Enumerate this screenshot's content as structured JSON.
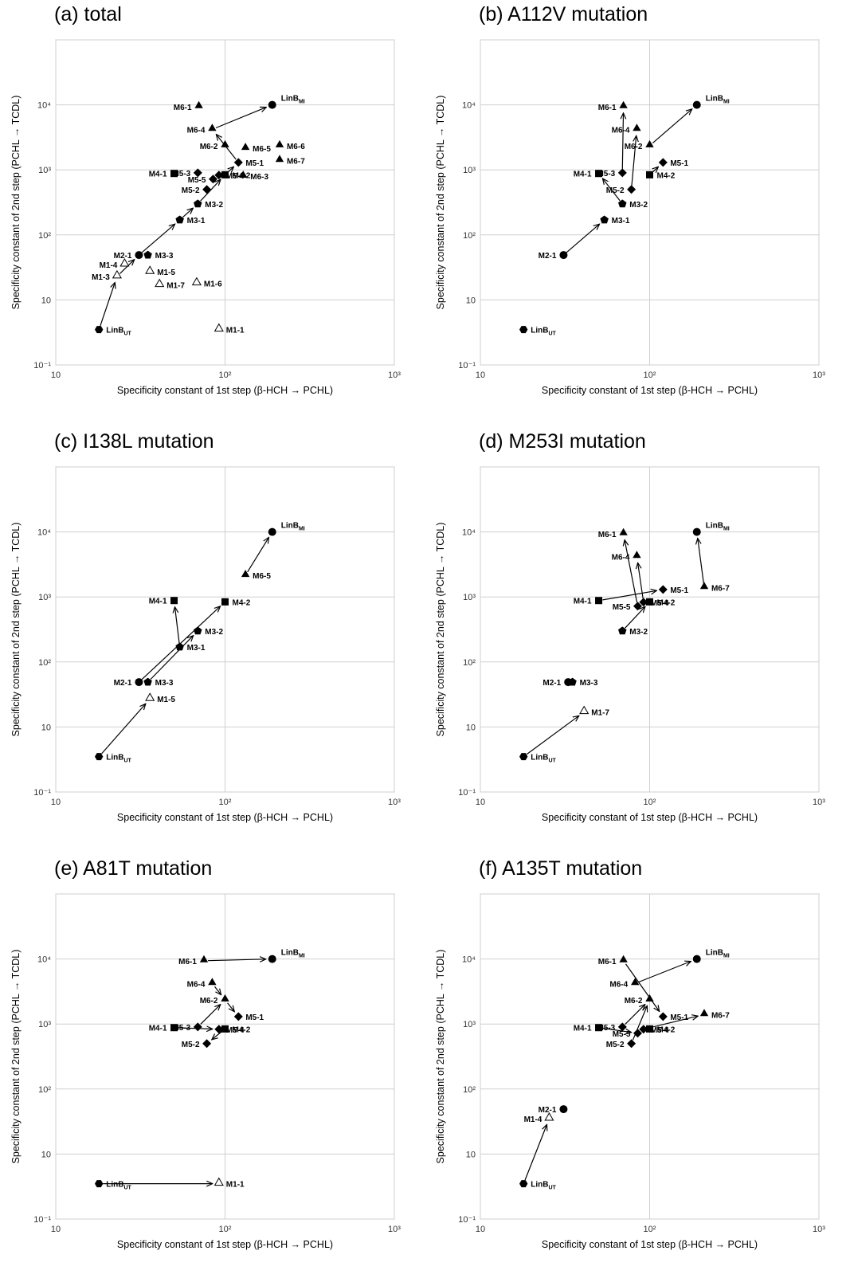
{
  "chart_data": [
    {
      "type": "scatter",
      "title": "(a) total",
      "xlabel": "Specificity constant of 1st step (β-HCH → PCHL)",
      "ylabel": "Specificity constant of 2nd step (PCHL → TCDL)",
      "x_scale": "log",
      "y_scale": "log",
      "xlim": [
        10,
        1000
      ],
      "ylim": [
        0.1,
        10000
      ],
      "x_ticks": [
        "10",
        "10²",
        "10³"
      ],
      "y_ticks": [
        "10⁻¹",
        "10",
        "10²",
        "10³",
        "10⁴"
      ],
      "grid": true,
      "points": [
        {
          "label": "LinB_UT",
          "x": 18,
          "y": 0.35,
          "marker": "hexagon"
        },
        {
          "label": "M1-3",
          "x": 23,
          "y": 2.3,
          "marker": "triangle-open"
        },
        {
          "label": "M1-4",
          "x": 25.5,
          "y": 3.5,
          "marker": "triangle-open"
        },
        {
          "label": "M2-1",
          "x": 31,
          "y": 4.9,
          "marker": "circle"
        },
        {
          "label": "M3-3",
          "x": 35,
          "y": 4.9,
          "marker": "pentagon"
        },
        {
          "label": "M1-5",
          "x": 36,
          "y": 2.7,
          "marker": "triangle-open"
        },
        {
          "label": "M1-7",
          "x": 41,
          "y": 1.7,
          "marker": "triangle-open"
        },
        {
          "label": "M1-6",
          "x": 68,
          "y": 1.8,
          "marker": "triangle-open"
        },
        {
          "label": "M1-1",
          "x": 92,
          "y": 0.35,
          "marker": "triangle-open"
        },
        {
          "label": "M3-1",
          "x": 54,
          "y": 17,
          "marker": "pentagon"
        },
        {
          "label": "M3-2",
          "x": 69,
          "y": 30,
          "marker": "pentagon"
        },
        {
          "label": "M4-1",
          "x": 50,
          "y": 88,
          "marker": "square"
        },
        {
          "label": "M4-2",
          "x": 100,
          "y": 84,
          "marker": "square"
        },
        {
          "label": "M5-3",
          "x": 69,
          "y": 90,
          "marker": "diamond"
        },
        {
          "label": "M5-2",
          "x": 78,
          "y": 50,
          "marker": "diamond"
        },
        {
          "label": "M5-5",
          "x": 85,
          "y": 72,
          "marker": "diamond"
        },
        {
          "label": "M5-4",
          "x": 92,
          "y": 83,
          "marker": "diamond"
        },
        {
          "label": "M5-1",
          "x": 120,
          "y": 130,
          "marker": "diamond"
        },
        {
          "label": "M6-1",
          "x": 70,
          "y": 940,
          "marker": "triangle"
        },
        {
          "label": "M6-4",
          "x": 84,
          "y": 420,
          "marker": "triangle"
        },
        {
          "label": "M6-2",
          "x": 100,
          "y": 235,
          "marker": "triangle"
        },
        {
          "label": "M6-5",
          "x": 132,
          "y": 215,
          "marker": "triangle"
        },
        {
          "label": "M6-6",
          "x": 210,
          "y": 235,
          "marker": "triangle"
        },
        {
          "label": "M6-7",
          "x": 210,
          "y": 140,
          "marker": "triangle"
        },
        {
          "label": "M6-3",
          "x": 128,
          "y": 80,
          "marker": "triangle"
        },
        {
          "label": "LinB_MI",
          "x": 190,
          "y": 1000,
          "marker": "circle"
        }
      ],
      "arrows": [
        [
          "LinB_UT",
          "M1-3"
        ],
        [
          "M1-3",
          "M2-1"
        ],
        [
          "M2-1",
          "M3-1"
        ],
        [
          "M3-1",
          "M3-2"
        ],
        [
          "M3-2",
          "M4-2"
        ],
        [
          "M4-2",
          "M5-1"
        ],
        [
          "M5-1",
          "M6-4"
        ],
        [
          "M6-4",
          "LinB_MI"
        ]
      ]
    },
    {
      "type": "scatter",
      "title": "(b) A112V mutation",
      "xlabel": "Specificity constant of 1st step (β-HCH → PCHL)",
      "ylabel": "Specificity constant of 2nd step (PCHL → TCDL)",
      "x_scale": "log",
      "y_scale": "log",
      "xlim": [
        10,
        1000
      ],
      "ylim": [
        0.1,
        10000
      ],
      "x_ticks": [
        "10",
        "10²",
        "10³"
      ],
      "y_ticks": [
        "10⁻¹",
        "10",
        "10²",
        "10³",
        "10⁴"
      ],
      "grid": true,
      "points": [
        {
          "label": "LinB_UT",
          "x": 18,
          "y": 0.35,
          "marker": "hexagon"
        },
        {
          "label": "M2-1",
          "x": 31,
          "y": 4.9,
          "marker": "circle"
        },
        {
          "label": "M3-1",
          "x": 54,
          "y": 17,
          "marker": "pentagon"
        },
        {
          "label": "M3-2",
          "x": 69,
          "y": 30,
          "marker": "pentagon"
        },
        {
          "label": "M4-1",
          "x": 50,
          "y": 88,
          "marker": "square"
        },
        {
          "label": "M4-2",
          "x": 100,
          "y": 84,
          "marker": "square"
        },
        {
          "label": "M5-3",
          "x": 69,
          "y": 90,
          "marker": "diamond"
        },
        {
          "label": "M5-2",
          "x": 78,
          "y": 50,
          "marker": "diamond"
        },
        {
          "label": "M5-1",
          "x": 120,
          "y": 130,
          "marker": "diamond"
        },
        {
          "label": "M6-1",
          "x": 70,
          "y": 940,
          "marker": "triangle"
        },
        {
          "label": "M6-4",
          "x": 84,
          "y": 420,
          "marker": "triangle"
        },
        {
          "label": "M6-2",
          "x": 100,
          "y": 235,
          "marker": "triangle"
        },
        {
          "label": "LinB_MI",
          "x": 190,
          "y": 1000,
          "marker": "circle"
        }
      ],
      "arrows": [
        [
          "M2-1",
          "M3-1"
        ],
        [
          "M3-2",
          "M4-1"
        ],
        [
          "M5-3",
          "M6-1"
        ],
        [
          "M5-2",
          "M6-4"
        ],
        [
          "M6-2",
          "LinB_MI"
        ],
        [
          "M4-2",
          "M5-1"
        ]
      ]
    },
    {
      "type": "scatter",
      "title": "(c) I138L mutation",
      "xlabel": "Specificity constant of 1st step (β-HCH → PCHL)",
      "ylabel": "Specificity constant of 2nd step (PCHL → TCDL)",
      "x_scale": "log",
      "y_scale": "log",
      "xlim": [
        10,
        1000
      ],
      "ylim": [
        0.1,
        10000
      ],
      "x_ticks": [
        "10",
        "10²",
        "10³"
      ],
      "y_ticks": [
        "10⁻¹",
        "10",
        "10²",
        "10³",
        "10⁴"
      ],
      "grid": true,
      "points": [
        {
          "label": "LinB_UT",
          "x": 18,
          "y": 0.35,
          "marker": "hexagon"
        },
        {
          "label": "M2-1",
          "x": 31,
          "y": 4.9,
          "marker": "circle"
        },
        {
          "label": "M3-3",
          "x": 35,
          "y": 4.9,
          "marker": "pentagon"
        },
        {
          "label": "M1-5",
          "x": 36,
          "y": 2.7,
          "marker": "triangle-open"
        },
        {
          "label": "M3-1",
          "x": 54,
          "y": 17,
          "marker": "pentagon"
        },
        {
          "label": "M3-2",
          "x": 69,
          "y": 30,
          "marker": "pentagon"
        },
        {
          "label": "M4-1",
          "x": 50,
          "y": 88,
          "marker": "square"
        },
        {
          "label": "M4-2",
          "x": 100,
          "y": 84,
          "marker": "square"
        },
        {
          "label": "M6-5",
          "x": 132,
          "y": 215,
          "marker": "triangle"
        },
        {
          "label": "LinB_MI",
          "x": 190,
          "y": 1000,
          "marker": "circle"
        }
      ],
      "arrows": [
        [
          "LinB_UT",
          "M1-5"
        ],
        [
          "M3-3",
          "M3-2"
        ],
        [
          "M3-1",
          "M4-1"
        ],
        [
          "M2-1",
          "M4-2"
        ],
        [
          "M6-5",
          "LinB_MI"
        ]
      ]
    },
    {
      "type": "scatter",
      "title": "(d) M253I mutation",
      "xlabel": "Specificity constant of 1st step (β-HCH → PCHL)",
      "ylabel": "Specificity constant of 2nd step (PCHL → TCDL)",
      "x_scale": "log",
      "y_scale": "log",
      "xlim": [
        10,
        1000
      ],
      "ylim": [
        0.1,
        10000
      ],
      "x_ticks": [
        "10",
        "10²",
        "10³"
      ],
      "y_ticks": [
        "10⁻¹",
        "10",
        "10²",
        "10³",
        "10⁴"
      ],
      "grid": true,
      "points": [
        {
          "label": "LinB_UT",
          "x": 18,
          "y": 0.35,
          "marker": "hexagon"
        },
        {
          "label": "M2-1",
          "x": 33,
          "y": 4.9,
          "marker": "circle"
        },
        {
          "label": "M3-3",
          "x": 35,
          "y": 4.9,
          "marker": "pentagon"
        },
        {
          "label": "M1-7",
          "x": 41,
          "y": 1.7,
          "marker": "triangle-open"
        },
        {
          "label": "M3-2",
          "x": 69,
          "y": 30,
          "marker": "pentagon"
        },
        {
          "label": "M4-1",
          "x": 50,
          "y": 88,
          "marker": "square"
        },
        {
          "label": "M4-2",
          "x": 100,
          "y": 84,
          "marker": "square"
        },
        {
          "label": "M5-5",
          "x": 85,
          "y": 72,
          "marker": "diamond"
        },
        {
          "label": "M5-4",
          "x": 92,
          "y": 83,
          "marker": "diamond"
        },
        {
          "label": "M5-1",
          "x": 120,
          "y": 130,
          "marker": "diamond"
        },
        {
          "label": "M6-1",
          "x": 70,
          "y": 940,
          "marker": "triangle"
        },
        {
          "label": "M6-4",
          "x": 84,
          "y": 420,
          "marker": "triangle"
        },
        {
          "label": "M6-7",
          "x": 210,
          "y": 140,
          "marker": "triangle"
        },
        {
          "label": "LinB_MI",
          "x": 190,
          "y": 1000,
          "marker": "circle"
        }
      ],
      "arrows": [
        [
          "LinB_UT",
          "M1-7"
        ],
        [
          "M2-1",
          "M3-3"
        ],
        [
          "M4-1",
          "M5-1"
        ],
        [
          "M3-2",
          "M4-2"
        ],
        [
          "M5-5",
          "M6-1"
        ],
        [
          "M5-4",
          "M6-4"
        ],
        [
          "M6-7",
          "LinB_MI"
        ]
      ]
    },
    {
      "type": "scatter",
      "title": "(e) A81T mutation",
      "xlabel": "Specificity constant of 1st step (β-HCH → PCHL)",
      "ylabel": "Specificity constant of 2nd step (PCHL → TCDL)",
      "x_scale": "log",
      "y_scale": "log",
      "xlim": [
        10,
        1000
      ],
      "ylim": [
        0.1,
        10000
      ],
      "x_ticks": [
        "10",
        "10²",
        "10³"
      ],
      "y_ticks": [
        "10⁻¹",
        "10",
        "10²",
        "10³",
        "10⁴"
      ],
      "grid": true,
      "points": [
        {
          "label": "LinB_UT",
          "x": 18,
          "y": 0.35,
          "marker": "hexagon"
        },
        {
          "label": "M1-1",
          "x": 92,
          "y": 0.35,
          "marker": "triangle-open"
        },
        {
          "label": "M4-1",
          "x": 50,
          "y": 88,
          "marker": "square"
        },
        {
          "label": "M4-2",
          "x": 100,
          "y": 84,
          "marker": "square"
        },
        {
          "label": "M5-3",
          "x": 69,
          "y": 90,
          "marker": "diamond"
        },
        {
          "label": "M5-2",
          "x": 78,
          "y": 50,
          "marker": "diamond"
        },
        {
          "label": "M5-4",
          "x": 92,
          "y": 83,
          "marker": "diamond"
        },
        {
          "label": "M5-1",
          "x": 120,
          "y": 130,
          "marker": "diamond"
        },
        {
          "label": "M6-1",
          "x": 75,
          "y": 940,
          "marker": "triangle"
        },
        {
          "label": "M6-4",
          "x": 84,
          "y": 420,
          "marker": "triangle"
        },
        {
          "label": "M6-2",
          "x": 100,
          "y": 235,
          "marker": "triangle"
        },
        {
          "label": "LinB_MI",
          "x": 190,
          "y": 1000,
          "marker": "circle"
        }
      ],
      "arrows": [
        [
          "LinB_UT",
          "M1-1"
        ],
        [
          "M4-1",
          "M5-4"
        ],
        [
          "M5-3",
          "M6-2"
        ],
        [
          "M6-2",
          "M5-1"
        ],
        [
          "M4-2",
          "M5-2"
        ],
        [
          "M6-4",
          "M6-2"
        ],
        [
          "M6-1",
          "LinB_MI"
        ]
      ]
    },
    {
      "type": "scatter",
      "title": "(f) A135T mutation",
      "xlabel": "Specificity constant of 1st step (β-HCH → PCHL)",
      "ylabel": "Specificity constant of 2nd step (PCHL → TCDL)",
      "x_scale": "log",
      "y_scale": "log",
      "xlim": [
        10,
        1000
      ],
      "ylim": [
        0.1,
        10000
      ],
      "x_ticks": [
        "10",
        "10²",
        "10³"
      ],
      "y_ticks": [
        "10⁻¹",
        "10",
        "10²",
        "10³",
        "10⁴"
      ],
      "grid": true,
      "points": [
        {
          "label": "LinB_UT",
          "x": 18,
          "y": 0.35,
          "marker": "hexagon"
        },
        {
          "label": "M1-4",
          "x": 25.5,
          "y": 3.5,
          "marker": "triangle-open"
        },
        {
          "label": "M2-1",
          "x": 31,
          "y": 4.9,
          "marker": "circle"
        },
        {
          "label": "M4-1",
          "x": 50,
          "y": 88,
          "marker": "square"
        },
        {
          "label": "M4-2",
          "x": 100,
          "y": 84,
          "marker": "square"
        },
        {
          "label": "M5-3",
          "x": 69,
          "y": 90,
          "marker": "diamond"
        },
        {
          "label": "M5-2",
          "x": 78,
          "y": 50,
          "marker": "diamond"
        },
        {
          "label": "M5-5",
          "x": 85,
          "y": 72,
          "marker": "diamond"
        },
        {
          "label": "M5-4",
          "x": 92,
          "y": 83,
          "marker": "diamond"
        },
        {
          "label": "M5-1",
          "x": 120,
          "y": 130,
          "marker": "diamond"
        },
        {
          "label": "M6-1",
          "x": 70,
          "y": 940,
          "marker": "triangle"
        },
        {
          "label": "M6-4",
          "x": 82,
          "y": 420,
          "marker": "triangle"
        },
        {
          "label": "M6-2",
          "x": 100,
          "y": 235,
          "marker": "triangle"
        },
        {
          "label": "M6-7",
          "x": 210,
          "y": 140,
          "marker": "triangle"
        },
        {
          "label": "LinB_MI",
          "x": 190,
          "y": 1000,
          "marker": "circle"
        }
      ],
      "arrows": [
        [
          "LinB_UT",
          "M1-4"
        ],
        [
          "M6-1",
          "M5-1"
        ],
        [
          "M6-4",
          "LinB_MI"
        ],
        [
          "M4-1",
          "M5-5"
        ],
        [
          "M5-3",
          "M6-2"
        ],
        [
          "M5-4",
          "M6-7"
        ],
        [
          "M5-2",
          "M6-2"
        ]
      ]
    }
  ]
}
